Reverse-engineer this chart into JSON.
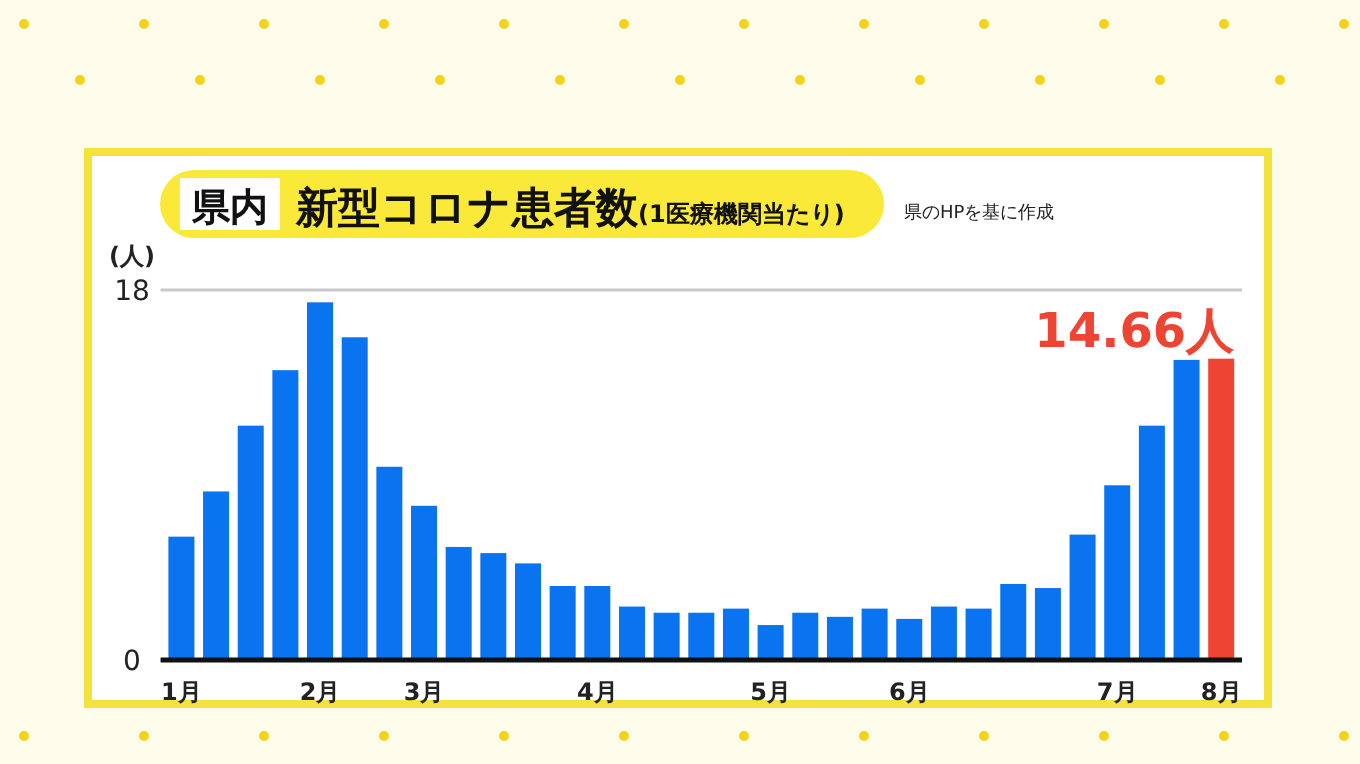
{
  "chart_data": {
    "type": "bar",
    "title": "新型コロナ患者数",
    "subtitle": "(1医療機関当たり)",
    "ylabel": "(人)",
    "categories": [
      "1月",
      null,
      null,
      null,
      "2月",
      null,
      null,
      "3月",
      null,
      null,
      null,
      null,
      "4月",
      null,
      null,
      null,
      null,
      "5月",
      null,
      null,
      null,
      "6月",
      null,
      null,
      null,
      null,
      null,
      "7月",
      null,
      null,
      "8月"
    ],
    "values": [
      6.0,
      8.2,
      11.4,
      14.1,
      17.4,
      15.7,
      9.4,
      7.5,
      5.5,
      5.2,
      4.7,
      3.6,
      3.6,
      2.6,
      2.3,
      2.3,
      2.5,
      1.7,
      2.3,
      2.1,
      2.5,
      2.0,
      2.6,
      2.5,
      3.7,
      3.5,
      6.1,
      8.5,
      11.4,
      14.6,
      14.66
    ],
    "colors": [
      "#0a73f0",
      "#0a73f0",
      "#0a73f0",
      "#0a73f0",
      "#0a73f0",
      "#0a73f0",
      "#0a73f0",
      "#0a73f0",
      "#0a73f0",
      "#0a73f0",
      "#0a73f0",
      "#0a73f0",
      "#0a73f0",
      "#0a73f0",
      "#0a73f0",
      "#0a73f0",
      "#0a73f0",
      "#0a73f0",
      "#0a73f0",
      "#0a73f0",
      "#0a73f0",
      "#0a73f0",
      "#0a73f0",
      "#0a73f0",
      "#0a73f0",
      "#0a73f0",
      "#0a73f0",
      "#0a73f0",
      "#0a73f0",
      "#0a73f0",
      "#ee4433"
    ],
    "ylim": [
      0,
      18
    ],
    "yticks": [
      0,
      18
    ],
    "grid": "y",
    "annotations": [
      "県内",
      "県のHPを基に作成",
      {
        "text": "14.66人",
        "x": "8月",
        "y": 14.66
      }
    ]
  }
}
